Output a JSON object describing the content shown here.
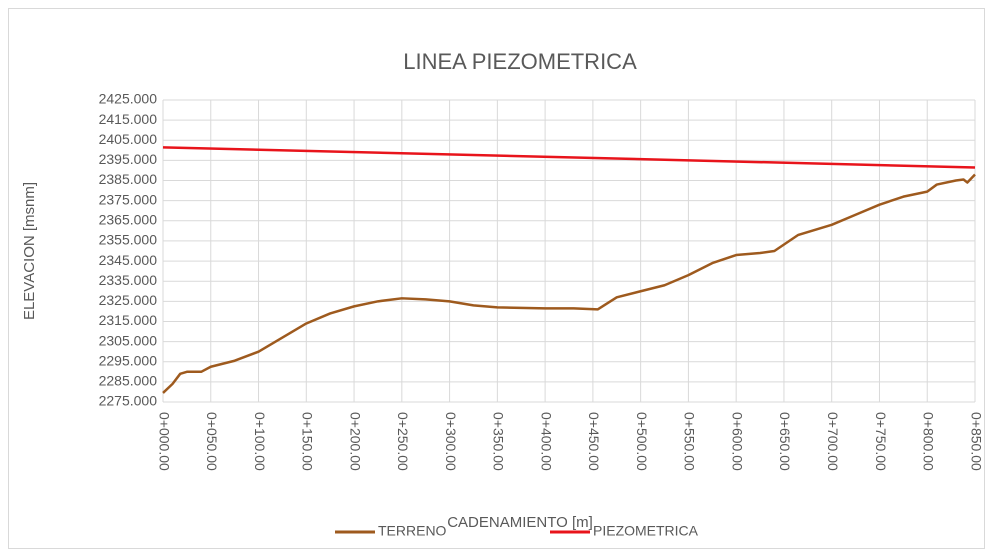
{
  "chart_data": {
    "type": "line",
    "title": "LINEA PIEZOMETRICA",
    "xlabel": "CADENAMIENTO [m]",
    "ylabel": "ELEVACION [msnm]",
    "xlim": [
      0,
      850
    ],
    "ylim": [
      2275,
      2425
    ],
    "xticks": [
      {
        "value": 0,
        "label": "0+000.00"
      },
      {
        "value": 50,
        "label": "0+050.00"
      },
      {
        "value": 100,
        "label": "0+100.00"
      },
      {
        "value": 150,
        "label": "0+150.00"
      },
      {
        "value": 200,
        "label": "0+200.00"
      },
      {
        "value": 250,
        "label": "0+250.00"
      },
      {
        "value": 300,
        "label": "0+300.00"
      },
      {
        "value": 350,
        "label": "0+350.00"
      },
      {
        "value": 400,
        "label": "0+400.00"
      },
      {
        "value": 450,
        "label": "0+450.00"
      },
      {
        "value": 500,
        "label": "0+500.00"
      },
      {
        "value": 550,
        "label": "0+550.00"
      },
      {
        "value": 600,
        "label": "0+600.00"
      },
      {
        "value": 650,
        "label": "0+650.00"
      },
      {
        "value": 700,
        "label": "0+700.00"
      },
      {
        "value": 750,
        "label": "0+750.00"
      },
      {
        "value": 800,
        "label": "0+800.00"
      },
      {
        "value": 850,
        "label": "0+850.00"
      }
    ],
    "yticks": [
      {
        "value": 2275,
        "label": "2275.000"
      },
      {
        "value": 2285,
        "label": "2285.000"
      },
      {
        "value": 2295,
        "label": "2295.000"
      },
      {
        "value": 2305,
        "label": "2305.000"
      },
      {
        "value": 2315,
        "label": "2315.000"
      },
      {
        "value": 2325,
        "label": "2325.000"
      },
      {
        "value": 2335,
        "label": "2335.000"
      },
      {
        "value": 2345,
        "label": "2345.000"
      },
      {
        "value": 2355,
        "label": "2355.000"
      },
      {
        "value": 2365,
        "label": "2365.000"
      },
      {
        "value": 2375,
        "label": "2375.000"
      },
      {
        "value": 2385,
        "label": "2385.000"
      },
      {
        "value": 2395,
        "label": "2395.000"
      },
      {
        "value": 2405,
        "label": "2405.000"
      },
      {
        "value": 2415,
        "label": "2415.000"
      },
      {
        "value": 2425,
        "label": "2425.000"
      }
    ],
    "grid": true,
    "legend": "bottom",
    "series": [
      {
        "name": "TERRENO",
        "color": "#9e5a1e",
        "x": [
          0,
          10,
          18,
          25,
          40,
          50,
          75,
          100,
          125,
          150,
          175,
          200,
          225,
          250,
          275,
          300,
          325,
          350,
          400,
          430,
          455,
          475,
          500,
          525,
          550,
          575,
          600,
          625,
          640,
          665,
          700,
          725,
          750,
          775,
          800,
          810,
          830,
          838,
          842,
          850
        ],
        "values": [
          2279.5,
          2284,
          2289,
          2290,
          2290,
          2292.5,
          2295.5,
          2300,
          2307,
          2314,
          2319,
          2322.5,
          2325,
          2326.5,
          2326,
          2325,
          2323,
          2322,
          2321.5,
          2321.5,
          2321,
          2327,
          2330,
          2333,
          2338,
          2344,
          2348,
          2349,
          2350,
          2358,
          2363,
          2368,
          2373,
          2377,
          2379.5,
          2383,
          2385,
          2385.5,
          2384,
          2388
        ]
      },
      {
        "name": "PIEZOMETRICA",
        "color": "#e8141b",
        "x": [
          0,
          850
        ],
        "values": [
          2401.5,
          2391.5
        ]
      }
    ]
  }
}
